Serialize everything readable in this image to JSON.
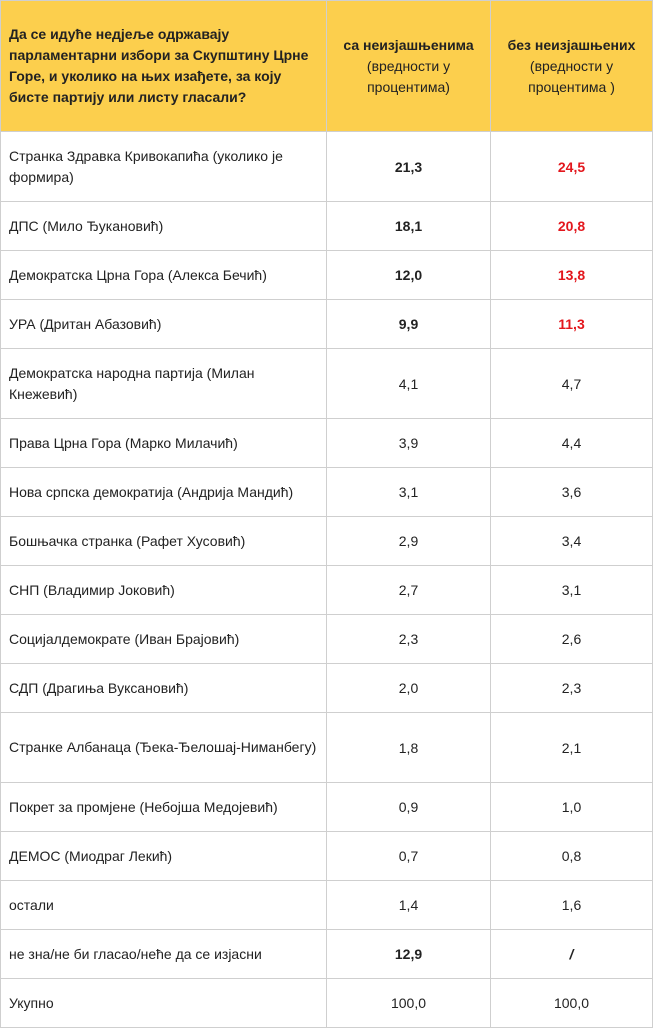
{
  "header": {
    "question": "Да се идуће недјеље одржавају парламентарни избори за Скупштину Црне Горе, и уколико на њих изађете, за коју бисте партију или листу гласали?",
    "col1_title": "са неизјашњенима",
    "col1_sub": "(вредности у процентима)",
    "col2_title": "без неизјашњених",
    "col2_sub": "(вредности у процентима )"
  },
  "rows": [
    {
      "party": "Странка Здравка Кривокапића (уколико је формира)",
      "with": "21,3",
      "without": "24,5"
    },
    {
      "party": "ДПС (Мило Ђукановић)",
      "with": "18,1",
      "without": "20,8"
    },
    {
      "party": "Демократска Црна Гора (Алекса Бечић)",
      "with": "12,0",
      "without": "13,8"
    },
    {
      "party": "УРА (Дритан Абазовић)",
      "with": "9,9",
      "without": "11,3"
    },
    {
      "party": "Демократска народна партија (Милан Кнежевић)",
      "with": "4,1",
      "without": "4,7"
    },
    {
      "party": "Права Црна Гора (Марко Милачић)",
      "with": "3,9",
      "without": "4,4"
    },
    {
      "party": "Нова српска демократија (Андрија Мандић)",
      "with": "3,1",
      "without": "3,6"
    },
    {
      "party": "Бошњачка странка (Рафет Хусовић)",
      "with": "2,9",
      "without": "3,4"
    },
    {
      "party": "СНП (Владимир Јоковић)",
      "with": "2,7",
      "without": "3,1"
    },
    {
      "party": "Социјалдемократе (Иван Брајовић)",
      "with": "2,3",
      "without": "2,6"
    },
    {
      "party": "СДП (Драгиња Вуксановић)",
      "with": "2,0",
      "without": "2,3"
    },
    {
      "party": "Странке Албанаца (Ђека-Ђелошај-Ниманбегу)",
      "with": "1,8",
      "without": "2,1"
    },
    {
      "party": "Покрет за промјене (Небојша Медојевић)",
      "with": "0,9",
      "without": "1,0"
    },
    {
      "party": "ДЕМОС (Миодраг Лекић)",
      "with": "0,7",
      "without": "0,8"
    },
    {
      "party": "остали",
      "with": "1,4",
      "without": "1,6"
    },
    {
      "party": "не зна/не би гласао/неће да се изјасни",
      "with": "12,9",
      "without": "/"
    },
    {
      "party": "Укупно",
      "with": "100,0",
      "without": "100,0"
    }
  ],
  "colors": {
    "header_bg": "#fccf4d",
    "highlight_red": "#e3161c",
    "border": "#cfcfcf"
  }
}
